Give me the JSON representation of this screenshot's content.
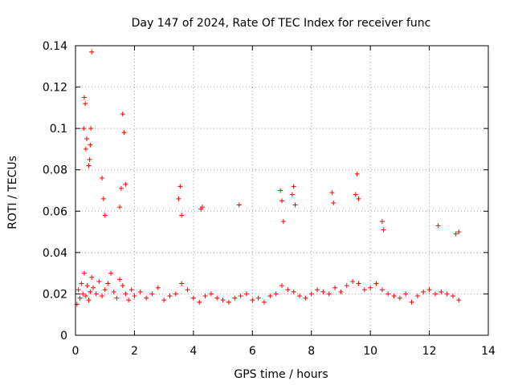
{
  "chart_data": {
    "type": "scatter",
    "title": "Day 147 of 2024, Rate Of TEC Index for receiver func",
    "xlabel": "GPS time / hours",
    "ylabel": "ROTI / TECUs",
    "xlim": [
      0,
      14
    ],
    "ylim": [
      0,
      0.14
    ],
    "x_ticks": [
      0,
      2,
      4,
      6,
      8,
      10,
      12,
      14
    ],
    "x_tick_labels": [
      "0",
      "2",
      "4",
      "6",
      "8",
      "10",
      "12",
      "14"
    ],
    "y_ticks": [
      0,
      0.02,
      0.04,
      0.06,
      0.08,
      0.1,
      0.12,
      0.14
    ],
    "y_tick_labels": [
      "0",
      "0.02",
      "0.04",
      "0.06",
      "0.08",
      "0.1",
      "0.12",
      "0.14"
    ],
    "grid": true,
    "marker": "+",
    "series": [
      {
        "name": "ROTI",
        "color": "#ff0000",
        "x": [
          0.05,
          0.1,
          0.15,
          0.2,
          0.25,
          0.3,
          0.35,
          0.4,
          0.45,
          0.5,
          0.55,
          0.6,
          0.7,
          0.8,
          0.9,
          1.0,
          1.1,
          1.2,
          1.3,
          1.4,
          1.5,
          1.6,
          1.7,
          1.8,
          1.9,
          2.0,
          2.2,
          2.4,
          2.6,
          2.8,
          3.0,
          3.2,
          3.4,
          3.6,
          3.8,
          4.0,
          4.2,
          4.4,
          4.6,
          4.8,
          5.0,
          5.2,
          5.4,
          5.6,
          5.8,
          6.0,
          6.2,
          6.4,
          6.6,
          6.8,
          7.0,
          7.2,
          7.4,
          7.6,
          7.8,
          8.0,
          8.2,
          8.4,
          8.6,
          8.8,
          9.0,
          9.2,
          9.4,
          9.6,
          9.8,
          10.0,
          10.2,
          10.4,
          10.6,
          10.8,
          11.0,
          11.2,
          11.4,
          11.6,
          11.8,
          12.0,
          12.2,
          12.4,
          12.6,
          12.8,
          13.0,
          0.28,
          0.3,
          0.33,
          0.35,
          0.38,
          0.45,
          0.48,
          0.5,
          0.52,
          0.55,
          0.9,
          0.95,
          1.0,
          1.5,
          1.55,
          1.6,
          1.65,
          1.7,
          3.5,
          3.55,
          3.6,
          4.25,
          4.3,
          5.55,
          6.95,
          7.0,
          7.05,
          7.35,
          7.4,
          7.45,
          8.7,
          8.75,
          9.5,
          9.55,
          9.6,
          10.4,
          10.45,
          12.3,
          12.9,
          13.0
        ],
        "y": [
          0.015,
          0.022,
          0.018,
          0.025,
          0.02,
          0.03,
          0.019,
          0.024,
          0.017,
          0.021,
          0.028,
          0.023,
          0.02,
          0.026,
          0.019,
          0.022,
          0.025,
          0.03,
          0.021,
          0.018,
          0.027,
          0.024,
          0.02,
          0.017,
          0.022,
          0.019,
          0.021,
          0.018,
          0.02,
          0.023,
          0.017,
          0.019,
          0.02,
          0.025,
          0.022,
          0.018,
          0.016,
          0.019,
          0.02,
          0.018,
          0.017,
          0.016,
          0.018,
          0.019,
          0.02,
          0.017,
          0.018,
          0.016,
          0.019,
          0.02,
          0.024,
          0.022,
          0.021,
          0.019,
          0.018,
          0.02,
          0.022,
          0.021,
          0.02,
          0.023,
          0.021,
          0.024,
          0.026,
          0.025,
          0.022,
          0.023,
          0.025,
          0.022,
          0.02,
          0.019,
          0.018,
          0.02,
          0.016,
          0.019,
          0.021,
          0.022,
          0.02,
          0.021,
          0.02,
          0.019,
          0.017,
          0.1,
          0.115,
          0.112,
          0.09,
          0.095,
          0.082,
          0.085,
          0.092,
          0.1,
          0.137,
          0.076,
          0.066,
          0.058,
          0.062,
          0.071,
          0.107,
          0.098,
          0.073,
          0.066,
          0.072,
          0.058,
          0.061,
          0.062,
          0.063,
          0.07,
          0.065,
          0.055,
          0.068,
          0.072,
          0.063,
          0.069,
          0.064,
          0.068,
          0.078,
          0.066,
          0.055,
          0.051,
          0.053,
          0.049,
          0.05
        ]
      }
    ]
  }
}
